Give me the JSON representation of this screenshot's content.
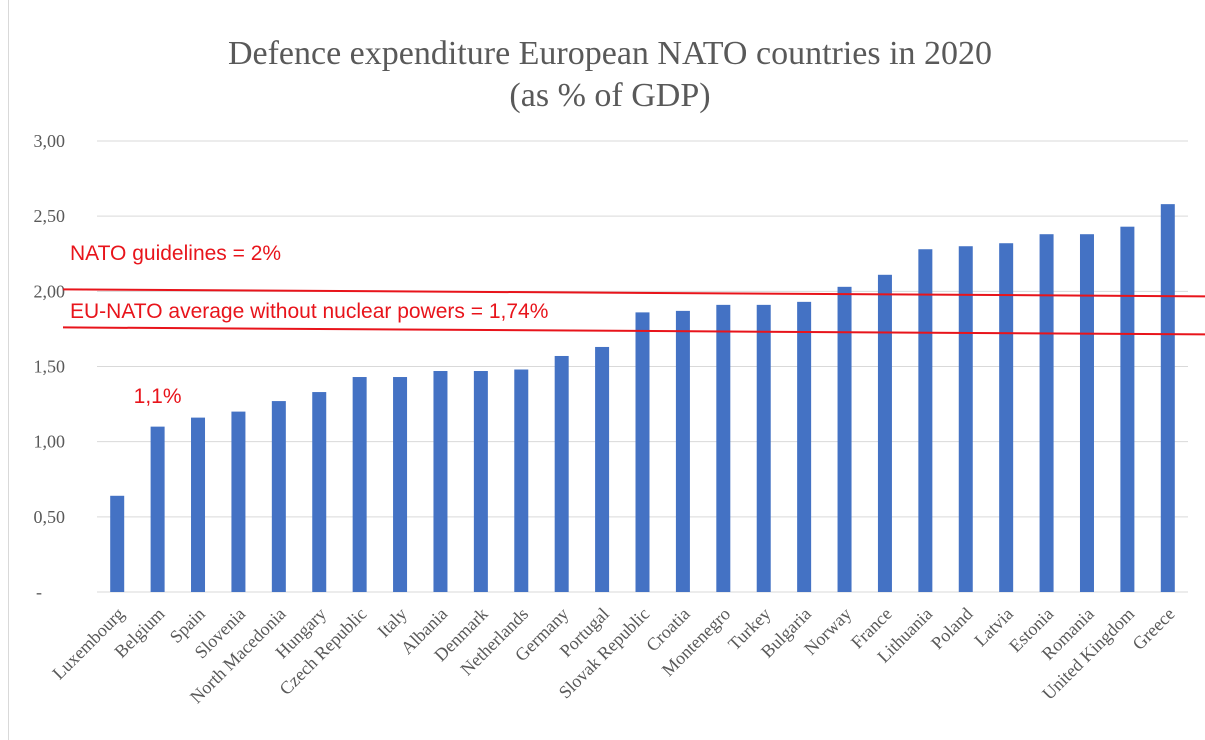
{
  "chart_data": {
    "type": "bar",
    "title": "Defence expenditure European NATO countries in 2020",
    "subtitle": "(as % of GDP)",
    "categories": [
      "Luxembourg",
      "Belgium",
      "Spain",
      "Slovenia",
      "North Macedonia",
      "Hungary",
      "Czech Republic",
      "Italy",
      "Albania",
      "Denmark",
      "Netherlands",
      "Germany",
      "Portugal",
      "Slovak Republic",
      "Croatia",
      "Montenegro",
      "Turkey",
      "Bulgaria",
      "Norway",
      "France",
      "Lithuania",
      "Poland",
      "Latvia",
      "Estonia",
      "Romania",
      "United Kingdom",
      "Greece"
    ],
    "values": [
      0.64,
      1.1,
      1.16,
      1.2,
      1.27,
      1.33,
      1.43,
      1.43,
      1.47,
      1.47,
      1.48,
      1.57,
      1.63,
      1.86,
      1.87,
      1.91,
      1.91,
      1.93,
      2.03,
      2.11,
      2.28,
      2.3,
      2.32,
      2.38,
      2.38,
      2.43,
      2.58
    ],
    "ylim": [
      0,
      3
    ],
    "yticks": [
      {
        "value": 0,
        "label": "-"
      },
      {
        "value": 0.5,
        "label": "0,50"
      },
      {
        "value": 1.0,
        "label": "1,00"
      },
      {
        "value": 1.5,
        "label": "1,50"
      },
      {
        "value": 2.0,
        "label": "2,00"
      },
      {
        "value": 2.5,
        "label": "2,50"
      },
      {
        "value": 3.0,
        "label": "3,00"
      }
    ],
    "xlabel": "",
    "ylabel": "",
    "grid": true,
    "bar_color": "#4472c4",
    "annotations": {
      "nato_guideline": {
        "label": "NATO guidelines = 2%",
        "value": 2.0
      },
      "eu_average": {
        "label": "EU-NATO average without nuclear powers = 1,74%",
        "value": 1.74
      },
      "belgium_label": {
        "label": "1,1%",
        "category": "Belgium"
      }
    },
    "annotation_color": "#e8141b"
  }
}
